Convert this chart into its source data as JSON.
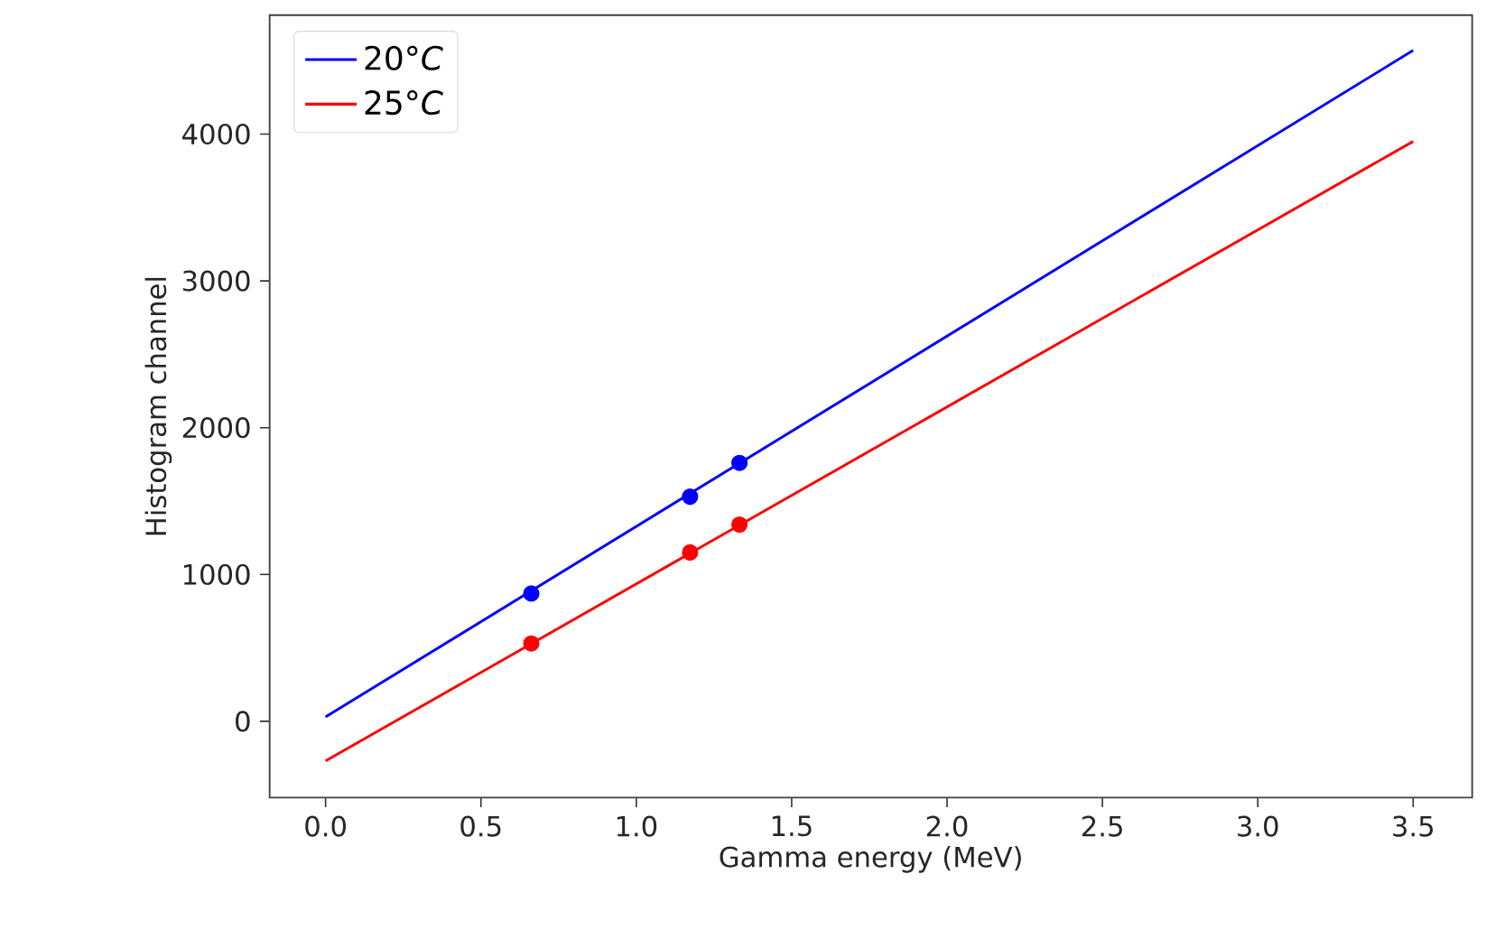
{
  "chart_data": {
    "type": "line",
    "xlabel": "Gamma energy (MeV)",
    "ylabel": "Histogram channel",
    "xlim": [
      -0.18,
      3.69
    ],
    "ylim": [
      -520,
      4810
    ],
    "xticks": [
      {
        "value": 0,
        "label": "0.0"
      },
      {
        "value": 0.5,
        "label": "0.5"
      },
      {
        "value": 1,
        "label": "1.0"
      },
      {
        "value": 1.5,
        "label": "1.5"
      },
      {
        "value": 2,
        "label": "2.0"
      },
      {
        "value": 2.5,
        "label": "2.5"
      },
      {
        "value": 3,
        "label": "3.0"
      },
      {
        "value": 3.5,
        "label": "3.5"
      }
    ],
    "yticks": [
      0,
      1000,
      2000,
      3000,
      4000
    ],
    "grid": false,
    "legend": "top left",
    "series": [
      {
        "name": "20°*C*",
        "color": "#0000ff",
        "x": [
          0,
          3.5
        ],
        "values": [
          30,
          4570
        ],
        "marker": "none"
      },
      {
        "name": "25°*C*",
        "color": "#ff0000",
        "x": [
          0,
          3.5
        ],
        "values": [
          -270,
          3950
        ],
        "marker": "none"
      },
      {
        "type": "scatter",
        "color": "#0000ff",
        "x": [
          0.662,
          1.173,
          1.332
        ],
        "values": [
          870,
          1530,
          1760
        ],
        "marker": "circle"
      },
      {
        "type": "scatter",
        "color": "#ff0000",
        "x": [
          0.662,
          1.173,
          1.332
        ],
        "values": [
          530,
          1150,
          1340
        ],
        "marker": "circle"
      }
    ]
  }
}
